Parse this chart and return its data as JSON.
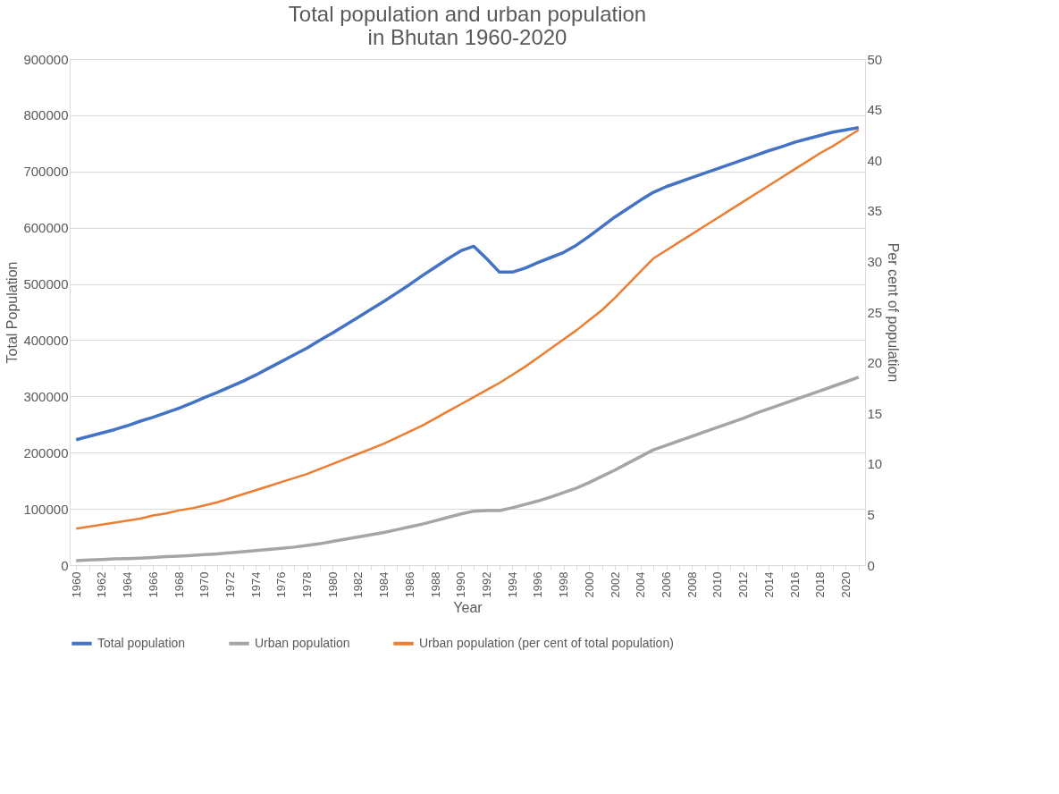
{
  "chart_data": {
    "type": "line",
    "title": "Total population and urban population\nin Bhutan 1960-2020",
    "xlabel": "Year",
    "ylabel": "Total Population",
    "y2label": "Per cent of population",
    "categories": [
      "1960",
      null,
      "1962",
      null,
      "1964",
      null,
      "1966",
      null,
      "1968",
      null,
      "1970",
      null,
      "1972",
      null,
      "1974",
      null,
      "1976",
      null,
      "1978",
      null,
      "1980",
      null,
      "1982",
      null,
      "1984",
      null,
      "1986",
      null,
      "1988",
      null,
      "1990",
      null,
      "1992",
      null,
      "1994",
      null,
      "1996",
      null,
      "1998",
      null,
      "2000",
      null,
      "2002",
      null,
      "2004",
      null,
      "2006",
      null,
      "2008",
      null,
      "2010",
      null,
      "2012",
      null,
      "2014",
      null,
      "2016",
      null,
      "2018",
      null,
      "2020",
      null
    ],
    "series": [
      {
        "name": "Total population",
        "color": "#4472c4",
        "axis": "y",
        "values": [
          223000,
          229000,
          235000,
          241000,
          248000,
          256000,
          263000,
          271000,
          279000,
          288000,
          298000,
          307000,
          317000,
          327000,
          338000,
          350000,
          362000,
          374000,
          386000,
          400000,
          413000,
          427000,
          441000,
          455000,
          469000,
          484000,
          499000,
          515000,
          530000,
          545000,
          559000,
          567000,
          545000,
          521000,
          521000,
          528000,
          538000,
          547000,
          556000,
          569000,
          585000,
          602000,
          619000,
          634000,
          649000,
          663000,
          673000,
          681000,
          689000,
          697000,
          705000,
          713000,
          721000,
          729000,
          737000,
          744000,
          752000,
          758000,
          764000,
          770000,
          774000,
          778000
        ]
      },
      {
        "name": "Urban population",
        "color": "#a5a5a5",
        "axis": "y",
        "values": [
          8000,
          9000,
          10000,
          11000,
          11500,
          12500,
          13500,
          15000,
          16000,
          17000,
          18500,
          20000,
          22000,
          24000,
          26000,
          28000,
          30000,
          32000,
          35000,
          38000,
          42000,
          46000,
          50000,
          54000,
          58000,
          63000,
          68000,
          73000,
          79000,
          85000,
          91000,
          96000,
          97000,
          97000,
          102000,
          108000,
          114000,
          121000,
          129000,
          137000,
          147000,
          158000,
          169000,
          181000,
          193000,
          205000,
          213000,
          221000,
          229000,
          237000,
          245000,
          253000,
          261000,
          270000,
          278000,
          286000,
          294000,
          302000,
          310000,
          318000,
          326000,
          334000
        ]
      },
      {
        "name": "Urban population (per cent of total population)",
        "color": "#ed7d31",
        "axis": "y2",
        "values": [
          3.6,
          3.8,
          4.0,
          4.2,
          4.4,
          4.6,
          4.9,
          5.1,
          5.4,
          5.6,
          5.9,
          6.2,
          6.6,
          7.0,
          7.4,
          7.8,
          8.2,
          8.6,
          9.0,
          9.5,
          10.0,
          10.5,
          11.0,
          11.5,
          12.0,
          12.6,
          13.2,
          13.8,
          14.5,
          15.2,
          15.9,
          16.6,
          17.3,
          18.0,
          18.8,
          19.6,
          20.5,
          21.4,
          22.3,
          23.2,
          24.2,
          25.2,
          26.4,
          27.7,
          29.0,
          30.3,
          31.1,
          31.9,
          32.7,
          33.5,
          34.3,
          35.1,
          35.9,
          36.7,
          37.5,
          38.3,
          39.1,
          39.9,
          40.7,
          41.4,
          42.2,
          43.0
        ]
      }
    ],
    "ylim": [
      0,
      900000
    ],
    "yticks": [
      0,
      100000,
      200000,
      300000,
      400000,
      500000,
      600000,
      700000,
      800000,
      900000
    ],
    "y2lim": [
      0,
      50
    ],
    "y2ticks": [
      0,
      5,
      10,
      15,
      20,
      25,
      30,
      35,
      40,
      45,
      50
    ],
    "grid": "y",
    "legend": "bottom",
    "marker": "none",
    "line_style": "solid"
  }
}
